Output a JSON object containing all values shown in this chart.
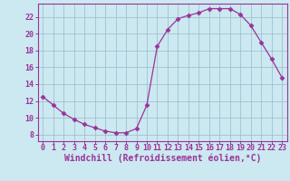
{
  "x": [
    0,
    1,
    2,
    3,
    4,
    5,
    6,
    7,
    8,
    9,
    10,
    11,
    12,
    13,
    14,
    15,
    16,
    17,
    18,
    19,
    20,
    21,
    22,
    23
  ],
  "y": [
    12.5,
    11.5,
    10.5,
    9.8,
    9.2,
    8.8,
    8.4,
    8.2,
    8.2,
    8.7,
    11.5,
    18.5,
    20.5,
    21.8,
    22.2,
    22.5,
    23.0,
    23.0,
    23.0,
    22.3,
    21.0,
    19.0,
    17.0,
    14.8
  ],
  "line_color": "#993399",
  "marker": "D",
  "markersize": 2.5,
  "bg_color": "#cce8f0",
  "grid_color": "#99bbcc",
  "xlabel": "Windchill (Refroidissement éolien,°C)",
  "ylabel": "",
  "xlim": [
    -0.5,
    23.5
  ],
  "ylim": [
    7.2,
    23.6
  ],
  "yticks": [
    8,
    10,
    12,
    14,
    16,
    18,
    20,
    22
  ],
  "xticks": [
    0,
    1,
    2,
    3,
    4,
    5,
    6,
    7,
    8,
    9,
    10,
    11,
    12,
    13,
    14,
    15,
    16,
    17,
    18,
    19,
    20,
    21,
    22,
    23
  ],
  "axis_fontsize": 6.5,
  "tick_fontsize": 6.0,
  "xlabel_fontsize": 7.0
}
